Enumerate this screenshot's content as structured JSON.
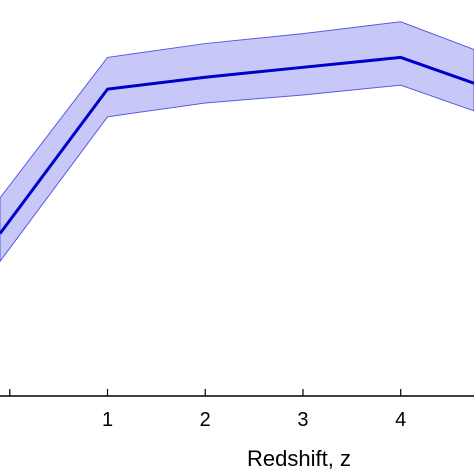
{
  "chart_data": {
    "type": "line",
    "xlabel": "Redshift, z",
    "ylabel": "",
    "title": "",
    "x_ticks": [
      "1",
      "2",
      "3",
      "4"
    ],
    "x": [
      -0.1,
      1,
      2,
      3,
      4,
      4.75
    ],
    "series": [
      {
        "values": [
          4.1,
          7.75,
          8.05,
          8.3,
          8.55,
          7.9
        ],
        "band_upper": [
          5.0,
          8.55,
          8.9,
          9.15,
          9.45,
          8.75
        ],
        "band_lower": [
          3.4,
          7.05,
          7.4,
          7.6,
          7.85,
          7.2
        ]
      }
    ],
    "xlim": [
      -0.1,
      4.75
    ],
    "ylim": [
      0,
      10
    ],
    "grid": false,
    "colors": {
      "line": "#0000cc",
      "band_fill": "#c8c8f8",
      "band_edge": "#5a5ae0",
      "axis": "#000000"
    }
  }
}
